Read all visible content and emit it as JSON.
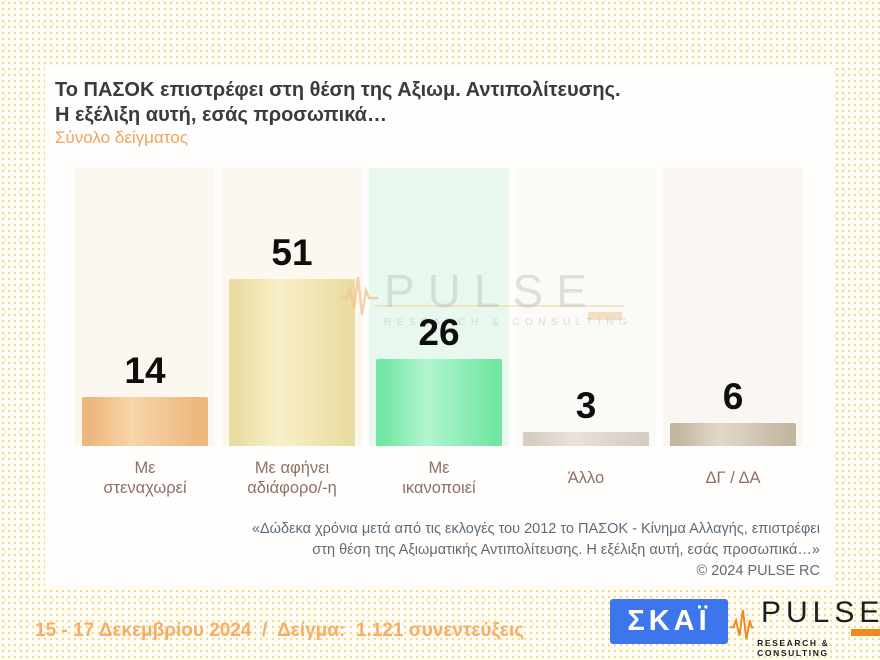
{
  "header": {
    "title_line1": "Το ΠΑΣΟΚ επιστρέφει στη θέση της Αξιωμ. Αντιπολίτευσης.",
    "title_line2": "Η εξέλιξη αυτή, εσάς προσωπικά…",
    "subtitle": "Σύνολο δείγματος"
  },
  "chart_data": {
    "type": "bar",
    "title": "Το ΠΑΣΟΚ επιστρέφει στη θέση της Αξιωμ. Αντιπολίτευσης. Η εξέλιξη αυτή, εσάς προσωπικά…",
    "subtitle": "Σύνολο δείγματος",
    "categories": [
      "Με\nστεναχωρεί",
      "Με αφήνει\nαδιάφορο/-η",
      "Με\nικανοποιεί",
      "Άλλο",
      "ΔΓ / ΔΑ"
    ],
    "values": [
      14,
      51,
      26,
      3,
      6
    ],
    "value_labels": true,
    "grid": false,
    "legend": false,
    "ylim": [
      0,
      84
    ],
    "bar_styles": [
      {
        "edge": "#edb77d",
        "center": "#f8d4a8",
        "track": "#fdf8ef"
      },
      {
        "edge": "#eadda2",
        "center": "#f9f0c8",
        "track": "#fdf8ef"
      },
      {
        "edge": "#72e6a3",
        "center": "#b2f5cf",
        "track": "#e8f8ee"
      },
      {
        "edge": "#d5cdc2",
        "center": "#e9e3da",
        "track": "#fbfaf7"
      },
      {
        "edge": "#c3b6a1",
        "center": "#e2d9c8",
        "track": "#faf7f2"
      }
    ]
  },
  "watermark": {
    "brand": "PULSE",
    "tagline": "RESEARCH & CONSULTING"
  },
  "footnote": {
    "line1": "«Δώδεκα χρόνια μετά από τις εκλογές του 2012 το ΠΑΣΟΚ - Κίνημα Αλλαγής, επιστρέφει",
    "line2": "στη θέση της Αξιωματικής Αντιπολίτευσης. Η εξέλιξη αυτή, εσάς προσωπικά…»",
    "line3": "©  2024  PULSE RC"
  },
  "footer": {
    "date_sample": "15 - 17 Δεκεμβρίου 2024  /  Δείγμα:  1.121 συνεντεύξεις",
    "skai_label": "ΣΚΑΪ",
    "pulse_brand": "PULSE",
    "pulse_tagline": "RESEARCH & CONSULTING"
  },
  "colors": {
    "accent_orange": "#f0a35b",
    "footnote_gray": "#5e6c79",
    "skai_blue": "#3d76ec",
    "pulse_orange": "#f0891e"
  }
}
